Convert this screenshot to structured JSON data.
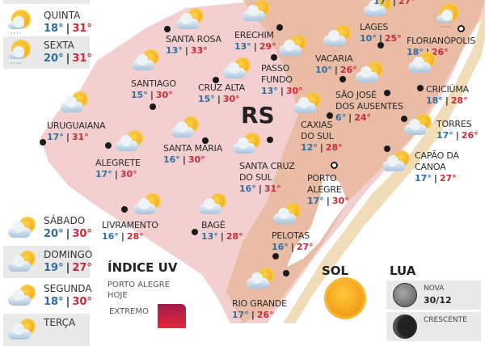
{
  "map_label": "RS",
  "top_partial_temps": {
    "min": "17°",
    "max": "27°"
  },
  "cities": [
    {
      "name": [
        "SANTA ROSA"
      ],
      "min": "13°",
      "max": "33°",
      "icon": "partly-cloudy-icon"
    },
    {
      "name": [
        "ERECHIM"
      ],
      "min": "13°",
      "max": "29°",
      "icon": "partly-cloudy-icon"
    },
    {
      "name": [
        "PASSO",
        "FUNDO"
      ],
      "min": "13°",
      "max": "30°",
      "icon": "partly-cloudy-icon"
    },
    {
      "name": [
        "LAGES"
      ],
      "min": "10°",
      "max": "25°",
      "icon": "partly-cloudy-icon"
    },
    {
      "name": [
        "FLORIANÓPOLIS"
      ],
      "min": "18°",
      "max": "26°",
      "icon": "sun-rain-icon"
    },
    {
      "name": [
        "VACARIA"
      ],
      "min": "10°",
      "max": "26°",
      "icon": "partly-cloudy-icon"
    },
    {
      "name": [
        "SANTIAGO"
      ],
      "min": "15°",
      "max": "30°",
      "icon": "partly-cloudy-icon"
    },
    {
      "name": [
        "CRUZ ALTA"
      ],
      "min": "15°",
      "max": "30°",
      "icon": "partly-cloudy-icon"
    },
    {
      "name": [
        "URUGUAIANA"
      ],
      "min": "17°",
      "max": "31°",
      "icon": "partly-cloudy-icon"
    },
    {
      "name": [
        "SANTA MARIA"
      ],
      "min": "16°",
      "max": "30°",
      "icon": "partly-cloudy-icon"
    },
    {
      "name": [
        "SÃO JOSÉ",
        "DOS AUSENTES"
      ],
      "min": "6°",
      "max": "24°",
      "icon": "partly-cloudy-icon"
    },
    {
      "name": [
        "CRICIÚMA"
      ],
      "min": "18°",
      "max": "28°",
      "icon": "partly-cloudy-icon"
    },
    {
      "name": [
        "CAXIAS",
        "DO SUL"
      ],
      "min": "12°",
      "max": "28°",
      "icon": "partly-cloudy-icon"
    },
    {
      "name": [
        "TORRES"
      ],
      "min": "17°",
      "max": "26°",
      "icon": "partly-cloudy-icon"
    },
    {
      "name": [
        "CAPÃO DA",
        "CANOA"
      ],
      "min": "17°",
      "max": "27°",
      "icon": "partly-cloudy-icon"
    },
    {
      "name": [
        "ALEGRETE"
      ],
      "min": "17°",
      "max": "30°",
      "icon": "partly-cloudy-icon"
    },
    {
      "name": [
        "SANTA CRUZ",
        "DO SUL"
      ],
      "min": "16°",
      "max": "31°",
      "icon": "partly-cloudy-icon"
    },
    {
      "name": [
        "PORTO",
        "ALEGRE"
      ],
      "min": "17°",
      "max": "30°",
      "icon": "none"
    },
    {
      "name": [
        "LIVRAMENTO"
      ],
      "min": "16°",
      "max": "28°",
      "icon": "partly-cloudy-icon"
    },
    {
      "name": [
        "BAGÉ"
      ],
      "min": "13°",
      "max": "28°",
      "icon": "partly-cloudy-icon"
    },
    {
      "name": [
        "PELOTAS"
      ],
      "min": "16°",
      "max": "27°",
      "icon": "partly-cloudy-icon"
    },
    {
      "name": [
        "RIO GRANDE"
      ],
      "min": "17°",
      "max": "26°",
      "icon": "partly-cloudy-icon"
    }
  ],
  "forecast": [
    {
      "day": "QUINTA",
      "min": "18°",
      "max": "31°",
      "icon": "sun-rain-icon"
    },
    {
      "day": "SEXTA",
      "min": "20°",
      "max": "31°",
      "icon": "sun-rain-icon"
    },
    {
      "day": "SÁBADO",
      "min": "20°",
      "max": "30°",
      "icon": "partly-cloudy-icon"
    },
    {
      "day": "DOMINGO",
      "min": "19°",
      "max": "27°",
      "icon": "partly-cloudy-icon"
    },
    {
      "day": "SEGUNDA",
      "min": "18°",
      "max": "30°",
      "icon": "partly-cloudy-icon"
    },
    {
      "day": "TERÇA",
      "min": "",
      "max": "",
      "icon": "partly-cloudy-icon"
    }
  ],
  "uv": {
    "title": "ÍNDICE UV",
    "location": "PORTO ALEGRE",
    "when": "HOJE",
    "level": "EXTREMO",
    "color": "#c4184f"
  },
  "sun": {
    "title": "SOL"
  },
  "moon": {
    "title": "LUA",
    "phases": [
      {
        "name": "NOVA",
        "date": "30/12"
      },
      {
        "name": "CRESCENTE",
        "date": ""
      }
    ]
  },
  "colors": {
    "min_temp": "#2f6f9e",
    "max_temp": "#c62b3a",
    "map_pink": "#f3cfcf",
    "map_brown": "#e8b79e"
  }
}
